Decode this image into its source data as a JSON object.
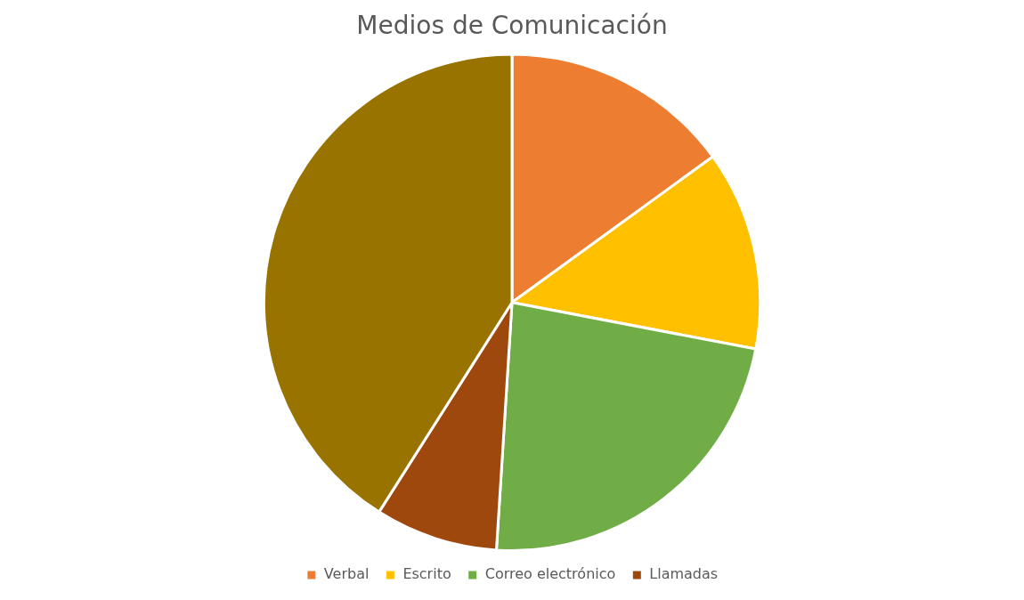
{
  "chart_data": {
    "type": "pie",
    "title": "Medios de Comunicación",
    "categories": [
      "Verbal",
      "Escrito",
      "Correo electrónico",
      "Llamadas",
      null
    ],
    "values": [
      15,
      13,
      23,
      8,
      41
    ],
    "colors": [
      "#ed7d31",
      "#ffc000",
      "#70ad47",
      "#9e480e",
      "#997300"
    ],
    "legend": "bottom"
  }
}
